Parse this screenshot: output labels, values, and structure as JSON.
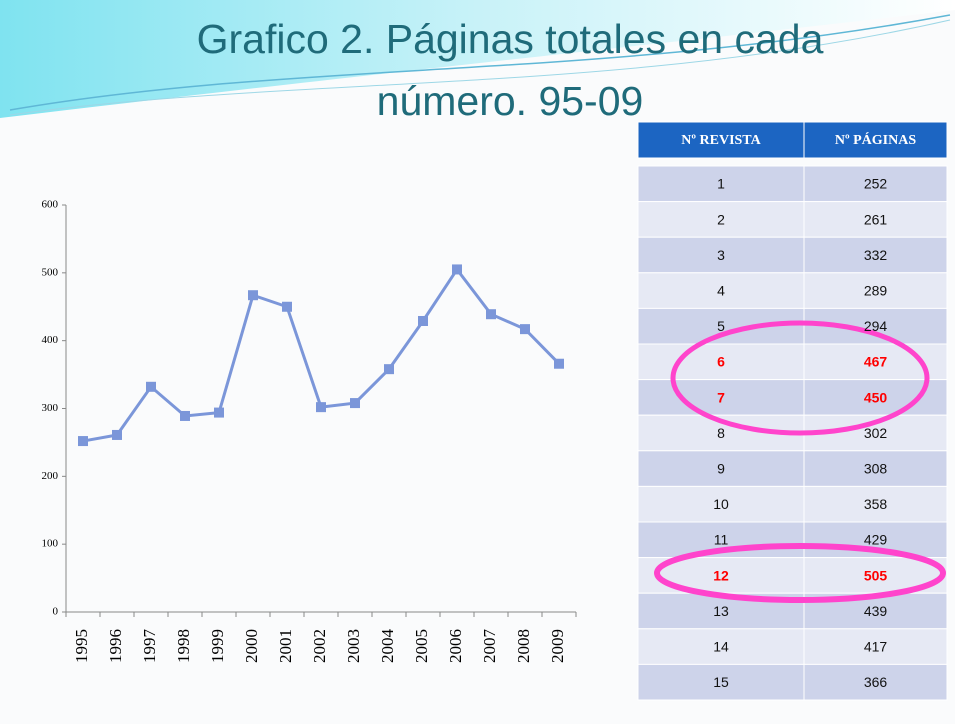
{
  "title": "Grafico 2. Páginas totales en cada número. 95-09",
  "chart_data": {
    "type": "line",
    "categories": [
      "1995",
      "1996",
      "1997",
      "1998",
      "1999",
      "2000",
      "2001",
      "2002",
      "2003",
      "2004",
      "2005",
      "2006",
      "2007",
      "2008",
      "2009"
    ],
    "values": [
      252,
      261,
      332,
      289,
      294,
      467,
      450,
      302,
      308,
      358,
      429,
      505,
      439,
      417,
      366
    ],
    "color": "#7b96d9",
    "ylim": [
      0,
      600
    ],
    "yticks": [
      0,
      100,
      200,
      300,
      400,
      500,
      600
    ]
  },
  "table": {
    "header": [
      "Nº REVISTA",
      "Nº PÁGINAS"
    ],
    "highlight_color": "#ff0000",
    "rows": [
      {
        "cells": [
          "1",
          "252"
        ]
      },
      {
        "cells": [
          "2",
          "261"
        ]
      },
      {
        "cells": [
          "3",
          "332"
        ]
      },
      {
        "cells": [
          "4",
          "289"
        ]
      },
      {
        "cells": [
          "5",
          "294"
        ]
      },
      {
        "cells": [
          "6",
          "467"
        ],
        "highlight": true
      },
      {
        "cells": [
          "7",
          "450"
        ],
        "highlight": true
      },
      {
        "cells": [
          "8",
          "302"
        ]
      },
      {
        "cells": [
          "9",
          "308"
        ]
      },
      {
        "cells": [
          "10",
          "358"
        ]
      },
      {
        "cells": [
          "11",
          "429"
        ]
      },
      {
        "cells": [
          "12",
          "505"
        ],
        "highlight": true
      },
      {
        "cells": [
          "13",
          "439"
        ]
      },
      {
        "cells": [
          "14",
          "417"
        ]
      },
      {
        "cells": [
          "15",
          "366"
        ]
      }
    ]
  }
}
